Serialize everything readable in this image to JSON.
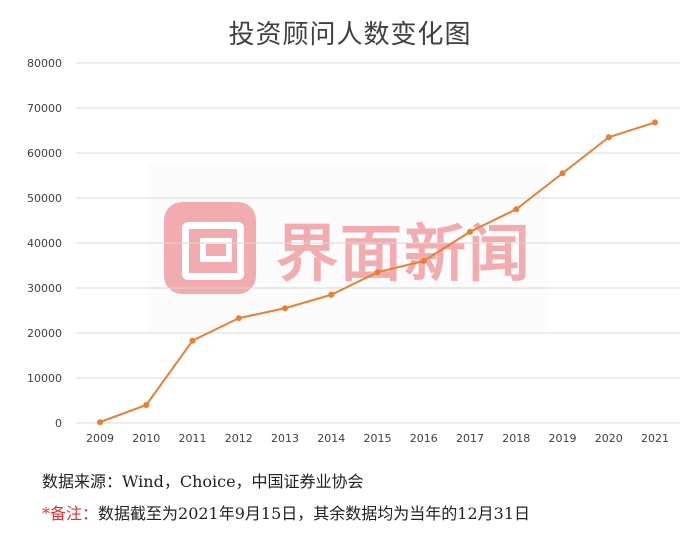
{
  "chart_data": {
    "type": "line",
    "title": "投资顾问人数变化图",
    "x": [
      "2009",
      "2010",
      "2011",
      "2012",
      "2013",
      "2014",
      "2015",
      "2016",
      "2017",
      "2018",
      "2019",
      "2020",
      "2021"
    ],
    "series": [
      {
        "values": [
          200,
          4000,
          18300,
          23300,
          25500,
          28500,
          33500,
          36000,
          42500,
          47500,
          55500,
          63500,
          66800
        ],
        "color": "#ed7d31"
      }
    ],
    "yticks": [
      "0",
      "10000",
      "20000",
      "30000",
      "40000",
      "50000",
      "60000",
      "70000",
      "80000"
    ],
    "ylim": [
      0,
      80000
    ],
    "grid": true,
    "legend": "none"
  },
  "watermark": {
    "text": "界面新闻",
    "icon": "jiemian-logo-icon",
    "color": "#e8696f"
  },
  "footnotes": {
    "source": "数据来源：Wind，Choice，中国证券业协会",
    "note_mark": "*备注：",
    "note_text": "数据截至为2021年9月15日，其余数据均为当年的12月31日"
  }
}
